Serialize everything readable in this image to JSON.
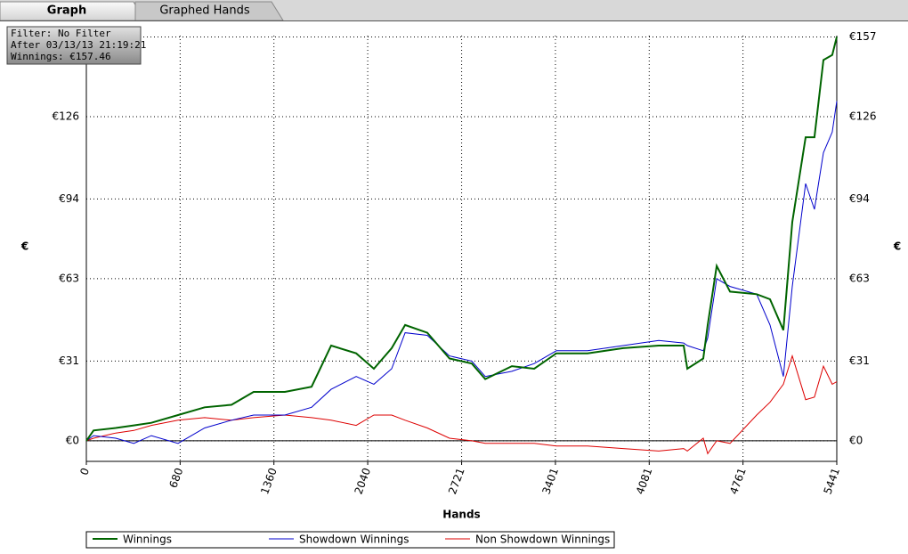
{
  "tabs": [
    "Graph",
    "Graphed Hands"
  ],
  "filter": [
    "Filter: No Filter",
    "After 03/13/13 21:19:21",
    "Winnings: €157.46"
  ],
  "chart_data": {
    "type": "line",
    "xlabel": "Hands",
    "ylabel": "€",
    "x": [
      0,
      52,
      213,
      344,
      471,
      665,
      858,
      1052,
      1213,
      1439,
      1633,
      1775,
      1956,
      2085,
      2214,
      2311,
      2472,
      2633,
      2795,
      2892,
      3085,
      3247,
      3408,
      3634,
      3892,
      4150,
      4331,
      4357,
      4473,
      4505,
      4570,
      4667,
      4860,
      4957,
      5054,
      5118,
      5215,
      5279,
      5344,
      5408,
      5441
    ],
    "series": [
      {
        "name": "Winnings",
        "color": "#006400",
        "values": [
          0,
          4,
          5,
          6,
          7,
          10,
          13,
          14,
          19,
          19,
          21,
          37,
          34,
          28,
          36,
          45,
          42,
          32,
          30,
          24,
          29,
          28,
          34,
          34,
          36,
          37,
          37,
          28,
          32,
          45,
          68,
          58,
          57,
          55,
          43,
          85,
          118,
          118,
          148,
          150,
          157
        ]
      },
      {
        "name": "Showdown Winnings",
        "color": "#0000cc",
        "values": [
          0,
          2,
          1,
          -1,
          2,
          -1,
          5,
          8,
          10,
          10,
          13,
          20,
          25,
          22,
          28,
          42,
          41,
          33,
          31,
          25,
          27,
          30,
          35,
          35,
          37,
          39,
          38,
          37,
          35,
          40,
          63,
          60,
          57,
          45,
          25,
          60,
          100,
          90,
          112,
          120,
          132
        ]
      },
      {
        "name": "Non Showdown Winnings",
        "color": "#dd0000",
        "values": [
          0,
          1,
          3,
          4,
          6,
          8,
          9,
          8,
          9,
          10,
          9,
          8,
          6,
          10,
          10,
          8,
          5,
          1,
          0,
          -1,
          -1,
          -1,
          -2,
          -2,
          -3,
          -4,
          -3,
          -4,
          1,
          -5,
          0,
          -1,
          10,
          15,
          22,
          33,
          16,
          17,
          29,
          22,
          23
        ]
      }
    ],
    "xlim": [
      0,
      5441
    ],
    "xticks": [
      0,
      680,
      1360,
      2040,
      2721,
      3401,
      4081,
      4761,
      5441
    ],
    "ylim": [
      -8,
      157.5
    ],
    "yticks": [
      {
        "value": 0,
        "label": "€0"
      },
      {
        "value": 31,
        "label": "€31"
      },
      {
        "value": 63,
        "label": "€63"
      },
      {
        "value": 94,
        "label": "€94"
      },
      {
        "value": 126,
        "label": "€126"
      },
      {
        "value": 157,
        "label": "€157"
      }
    ],
    "grid": true
  }
}
